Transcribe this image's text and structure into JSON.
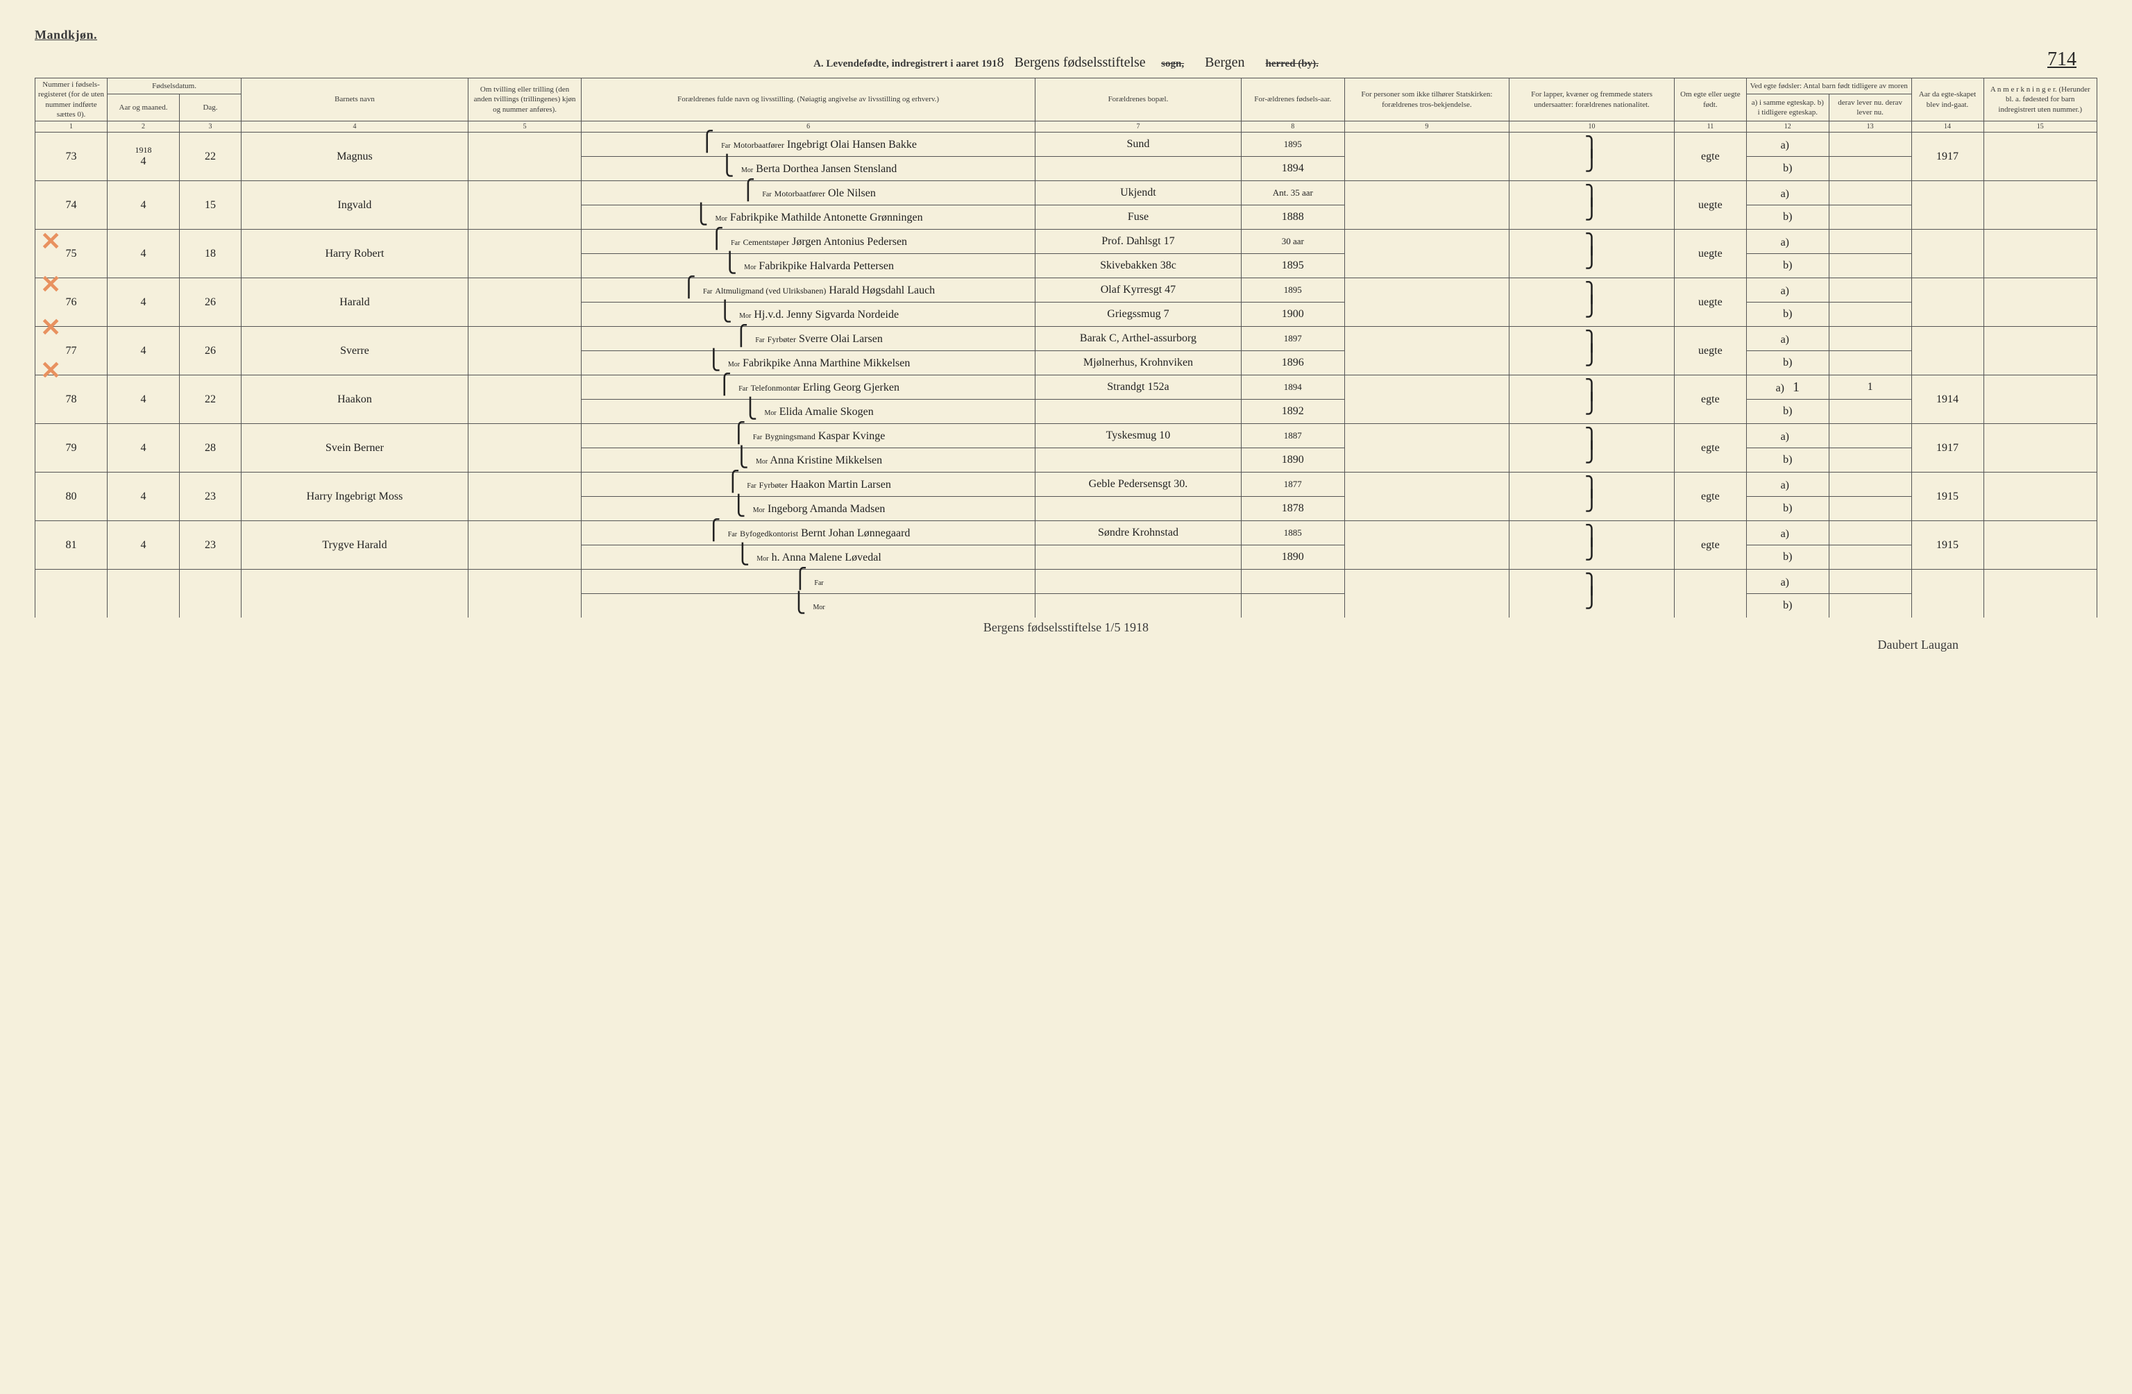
{
  "page": {
    "gender_heading": "Mandkjøn.",
    "title_prefix": "A. Levendefødte, indregistrert i aaret 191",
    "title_year_suffix": "8",
    "title_place": "Bergens fødselsstiftelse",
    "sogn_label": "sogn,",
    "herred_place": "Bergen",
    "herred_label": "herred (by).",
    "page_number": "714",
    "footer_line1": "Bergens fødselsstiftelse   1/5  1918",
    "footer_line2": "Daubert Laugan"
  },
  "headers": {
    "col1": "Nummer i fødsels-registeret (for de uten nummer indførte sættes 0).",
    "col_fodsel": "Fødselsdatum.",
    "col2": "Aar og maaned.",
    "col3": "Dag.",
    "col4": "Barnets navn",
    "col5": "Om tvilling eller trilling (den anden tvillings (trillingenes) kjøn og nummer anføres).",
    "col6": "Forældrenes fulde navn og livsstilling. (Nøiagtig angivelse av livsstilling og erhverv.)",
    "col7": "Forældrenes bopæl.",
    "col8": "For-ældrenes fødsels-aar.",
    "col9": "For personer som ikke tilhører Statskirken: forældrenes tros-bekjendelse.",
    "col10": "For lapper, kvæner og fremmede staters undersaatter: forældrenes nationalitet.",
    "col11": "Om egte eller uegte født.",
    "col12_13": "Ved egte fødsler: Antal barn født tidligere av moren",
    "col12": "a) i samme egteskap. b) i tidligere egteskap.",
    "col13": "derav lever nu. derav lever nu.",
    "col14": "Aar da egte-skapet blev ind-gaat.",
    "col15": "A n m e r k n i n g e r. (Herunder bl. a. fødested for barn indregistrert uten nummer.)"
  },
  "colnums": [
    "1",
    "2",
    "3",
    "4",
    "5",
    "6",
    "7",
    "8",
    "9",
    "10",
    "11",
    "12",
    "13",
    "14",
    "15"
  ],
  "year_top": "1918",
  "far_label": "Far",
  "mor_label": "Mor",
  "a_label": "a)",
  "b_label": "b)",
  "rows": [
    {
      "num": "73",
      "month": "4",
      "day": "22",
      "name": "Magnus",
      "far_occ": "Motorbaatfører",
      "far_name": "Ingebrigt Olai Hansen Bakke",
      "far_res": "Sund",
      "far_year": "1895",
      "mor_name": "Berta Dorthea Jansen Stensland",
      "mor_res": "",
      "mor_year": "1894",
      "legit": "egte",
      "col12a": "",
      "col12b": "",
      "year_married": "1917",
      "x": false,
      "underline": false
    },
    {
      "num": "74",
      "month": "4",
      "day": "15",
      "name": "Ingvald",
      "far_occ": "Motorbaatfører",
      "far_name": "Ole Nilsen",
      "far_res": "Ukjendt",
      "far_year": "Ant. 35 aar",
      "mor_name": "Fabrikpike Mathilde Antonette Grønningen",
      "mor_res": "Fuse",
      "mor_year": "1888",
      "legit": "uegte",
      "col12a": "",
      "col12b": "",
      "year_married": "",
      "x": true,
      "underline": true
    },
    {
      "num": "75",
      "month": "4",
      "day": "18",
      "name": "Harry Robert",
      "far_occ": "Cementstøper",
      "far_name": "Jørgen Antonius Pedersen",
      "far_res": "Prof. Dahlsgt 17",
      "far_year": "30 aar",
      "mor_name": "Fabrikpike Halvarda Pettersen",
      "mor_res": "Skivebakken 38c",
      "mor_year": "1895",
      "legit": "uegte",
      "col12a": "",
      "col12b": "",
      "year_married": "",
      "x": true,
      "underline": true
    },
    {
      "num": "76",
      "month": "4",
      "day": "26",
      "name": "Harald",
      "far_occ": "Altmuligmand (ved Ulriksbanen)",
      "far_name": "Harald Høgsdahl Lauch",
      "far_res": "Olaf Kyrresgt 47",
      "far_year": "1895",
      "mor_name": "Hj.v.d. Jenny Sigvarda Nordeide",
      "mor_res": "Griegssmug 7",
      "mor_year": "1900",
      "legit": "uegte",
      "col12a": "",
      "col12b": "",
      "year_married": "",
      "x": true,
      "underline": true
    },
    {
      "num": "77",
      "month": "4",
      "day": "26",
      "name": "Sverre",
      "far_occ": "Fyrbøter",
      "far_name": "Sverre Olai Larsen",
      "far_res": "Barak C, Arthel-assurborg",
      "far_year": "1897",
      "mor_name": "Fabrikpike Anna Marthine Mikkelsen",
      "mor_res": "Mjølnerhus, Krohnviken",
      "mor_year": "1896",
      "legit": "uegte",
      "col12a": "",
      "col12b": "",
      "year_married": "",
      "x": true,
      "underline": true
    },
    {
      "num": "78",
      "month": "4",
      "day": "22",
      "name": "Haakon",
      "far_occ": "Telefonmontør",
      "far_name": "Erling Georg Gjerken",
      "far_res": "Strandgt 152a",
      "far_year": "1894",
      "mor_name": "Elida Amalie Skogen",
      "mor_res": "",
      "mor_year": "1892",
      "legit": "egte",
      "col12a": "1",
      "col12b": "1",
      "year_married": "1914",
      "x": false,
      "underline": false
    },
    {
      "num": "79",
      "month": "4",
      "day": "28",
      "name": "Svein Berner",
      "far_occ": "Bygningsmand",
      "far_name": "Kaspar Kvinge",
      "far_res": "Tyskesmug 10",
      "far_year": "1887",
      "mor_name": "Anna Kristine Mikkelsen",
      "mor_res": "",
      "mor_year": "1890",
      "legit": "egte",
      "col12a": "",
      "col12b": "",
      "year_married": "1917",
      "x": false,
      "underline": false
    },
    {
      "num": "80",
      "month": "4",
      "day": "23",
      "name": "Harry Ingebrigt Moss",
      "far_occ": "Fyrbøter",
      "far_name": "Haakon Martin Larsen",
      "far_res": "Geble Pedersensgt 30.",
      "far_year": "1877",
      "mor_name": "Ingeborg Amanda Madsen",
      "mor_res": "",
      "mor_year": "1878",
      "legit": "egte",
      "col12a": "",
      "col12b": "",
      "year_married": "1915",
      "x": false,
      "underline": false
    },
    {
      "num": "81",
      "month": "4",
      "day": "23",
      "name": "Trygve Harald",
      "far_occ": "Byfogedkontorist",
      "far_name": "Bernt Johan Lønnegaard",
      "far_res": "Søndre Krohnstad",
      "far_year": "1885",
      "mor_name": "h. Anna Malene Løvedal",
      "mor_res": "",
      "mor_year": "1890",
      "legit": "egte",
      "col12a": "",
      "col12b": "",
      "year_married": "1915",
      "x": false,
      "underline": false
    },
    {
      "num": "",
      "month": "",
      "day": "",
      "name": "",
      "far_occ": "",
      "far_name": "",
      "far_res": "",
      "far_year": "",
      "mor_name": "",
      "mor_res": "",
      "mor_year": "",
      "legit": "",
      "col12a": "",
      "col12b": "",
      "year_married": "",
      "x": false,
      "underline": false
    }
  ],
  "style": {
    "bg": "#f5f0dc",
    "ink": "#3a3a3a",
    "border": "#555555",
    "orange": "#e8915f",
    "col_widths_pct": [
      3.5,
      3.5,
      3,
      11,
      5.5,
      22,
      10,
      5,
      8,
      8,
      3.5,
      4,
      4,
      3.5,
      5.5
    ]
  }
}
